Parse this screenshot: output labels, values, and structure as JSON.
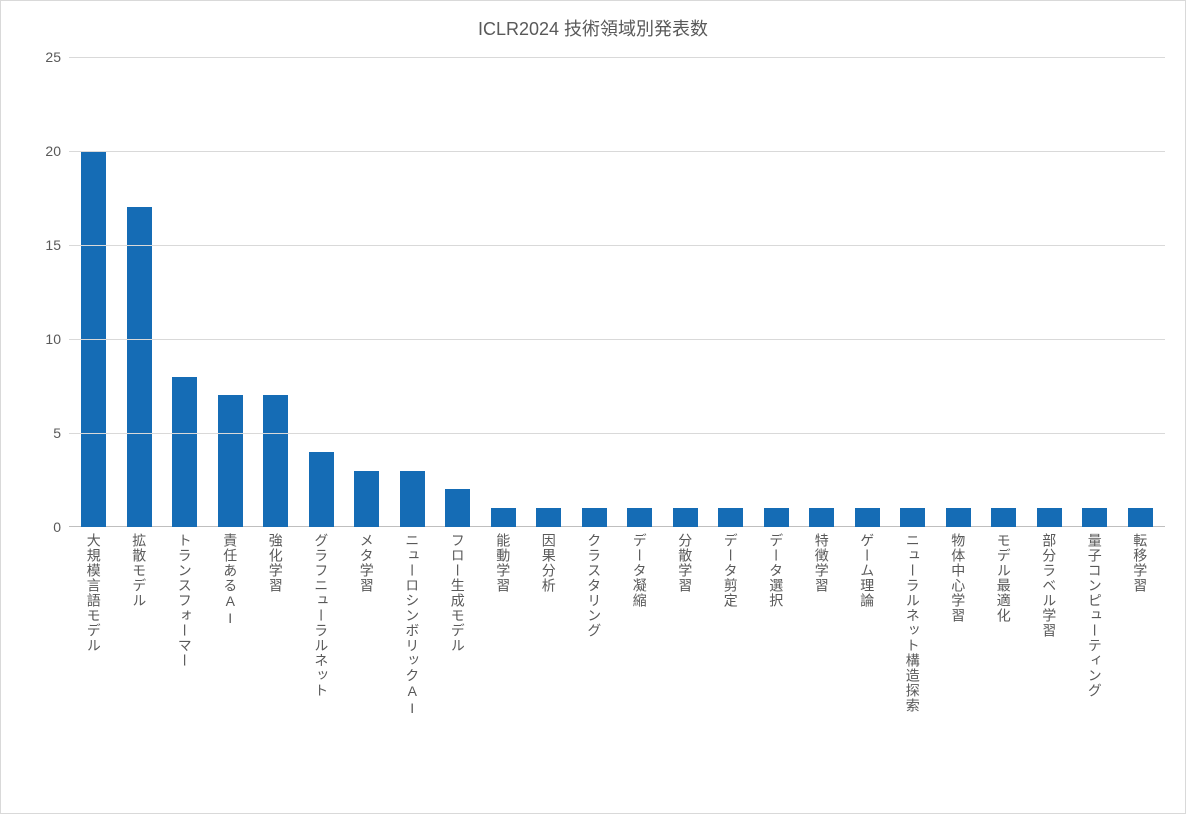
{
  "chart": {
    "type": "bar",
    "title": "ICLR2024 技術領域別発表数",
    "title_fontsize": 18,
    "title_color": "#595959",
    "background_color": "#ffffff",
    "border_color": "#d9d9d9",
    "grid_color": "#d9d9d9",
    "baseline_color": "#bfbfbf",
    "axis_label_color": "#595959",
    "axis_label_fontsize": 14,
    "bar_color": "#156cb5",
    "bar_width_ratio": 0.54,
    "ylim": [
      0,
      25
    ],
    "ytick_step": 5,
    "yticks": [
      0,
      5,
      10,
      15,
      20,
      25
    ],
    "categories": [
      "大規模言語モデル",
      "拡散モデル",
      "トランスフォーマー",
      "責任あるAI",
      "強化学習",
      "グラフニューラルネット",
      "メタ学習",
      "ニューロシンボリックAI",
      "フロー生成モデル",
      "能動学習",
      "因果分析",
      "クラスタリング",
      "データ凝縮",
      "分散学習",
      "データ剪定",
      "データ選択",
      "特徴学習",
      "ゲーム理論",
      "ニューラルネット構造探索",
      "物体中心学習",
      "モデル最適化",
      "部分ラベル学習",
      "量子コンピューティング",
      "転移学習"
    ],
    "values": [
      20,
      17,
      8,
      7,
      7,
      4,
      3,
      3,
      2,
      1,
      1,
      1,
      1,
      1,
      1,
      1,
      1,
      1,
      1,
      1,
      1,
      1,
      1,
      1
    ]
  }
}
